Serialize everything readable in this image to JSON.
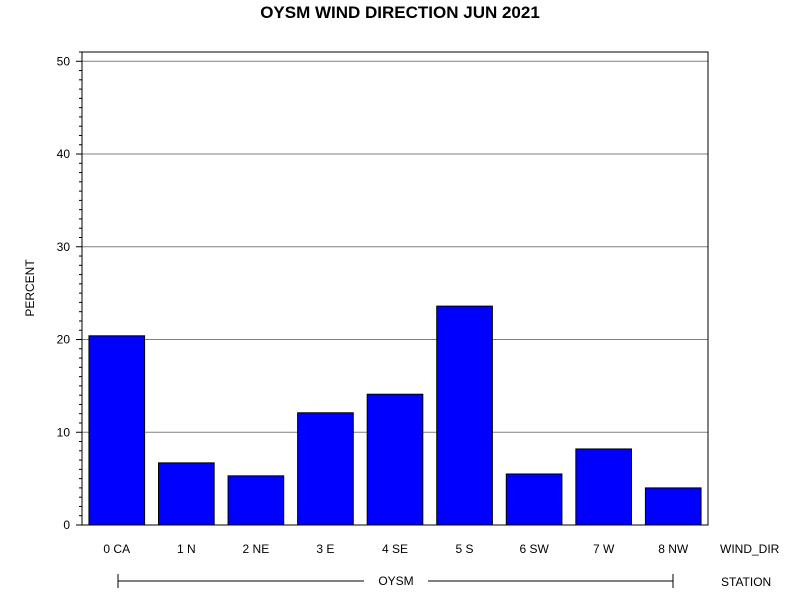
{
  "chart_data": {
    "type": "bar",
    "title": "OYSM WIND DIRECTION JUN 2021",
    "ylabel": "PERCENT",
    "xlabel": "WIND_DIR",
    "group_axis_label": "STATION",
    "group_name": "OYSM",
    "categories": [
      "0 CA",
      "1 N",
      "2 NE",
      "3 E",
      "4 SE",
      "5 S",
      "6 SW",
      "7 W",
      "8 NW"
    ],
    "values": [
      20.4,
      6.7,
      5.3,
      12.1,
      14.1,
      23.6,
      5.5,
      8.2,
      4.0
    ],
    "ylim": [
      0,
      51
    ],
    "yticks": [
      0,
      10,
      20,
      30,
      40,
      50
    ],
    "grid": true,
    "bar_color": "#0000ff",
    "bar_edge_color": "#000000",
    "grid_color": "#808080"
  }
}
